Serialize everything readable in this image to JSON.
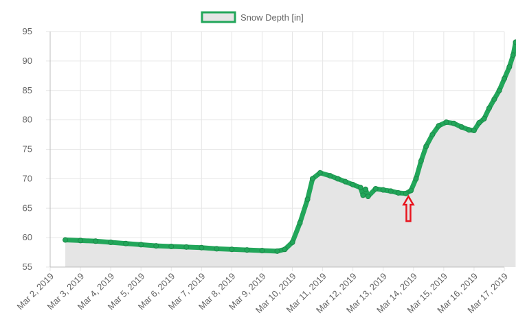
{
  "chart_data": {
    "type": "area",
    "legend": {
      "label": "Snow Depth [in]",
      "position": "top"
    },
    "colors": {
      "line": "#22a65a",
      "fill": "#e5e5e5",
      "grid": "#e6e6e6",
      "annotation": "#e8141e"
    },
    "ylim": [
      55,
      95
    ],
    "y_ticks": [
      "55",
      "60",
      "65",
      "70",
      "75",
      "80",
      "85",
      "90",
      "95"
    ],
    "xlim": [
      "2019-03-02",
      "2019-03-17"
    ],
    "x_ticks": [
      "Mar 2, 2019",
      "Mar 3, 2019",
      "Mar 4, 2019",
      "Mar 5, 2019",
      "Mar 6, 2019",
      "Mar 7, 2019",
      "Mar 8, 2019",
      "Mar 9, 2019",
      "Mar 10, 2019",
      "Mar 11, 2019",
      "Mar 12, 2019",
      "Mar 13, 2019",
      "Mar 14, 2019",
      "Mar 15, 2019",
      "Mar 16, 2019",
      "Mar 17, 2019"
    ],
    "grid": true,
    "annotation": {
      "type": "arrow-up",
      "x": "2019-03-13T20:00",
      "y": 67
    },
    "series": [
      {
        "name": "Snow Depth [in]",
        "points": [
          [
            "2019-03-02T12:00",
            59.6
          ],
          [
            "2019-03-03T00:00",
            59.5
          ],
          [
            "2019-03-03T12:00",
            59.4
          ],
          [
            "2019-03-04T00:00",
            59.2
          ],
          [
            "2019-03-04T12:00",
            59.0
          ],
          [
            "2019-03-05T00:00",
            58.8
          ],
          [
            "2019-03-05T12:00",
            58.6
          ],
          [
            "2019-03-06T00:00",
            58.5
          ],
          [
            "2019-03-06T12:00",
            58.4
          ],
          [
            "2019-03-07T00:00",
            58.3
          ],
          [
            "2019-03-07T12:00",
            58.1
          ],
          [
            "2019-03-08T00:00",
            58.0
          ],
          [
            "2019-03-08T12:00",
            57.9
          ],
          [
            "2019-03-09T00:00",
            57.8
          ],
          [
            "2019-03-09T12:00",
            57.7
          ],
          [
            "2019-03-09T18:00",
            58.0
          ],
          [
            "2019-03-10T00:00",
            59.2
          ],
          [
            "2019-03-10T06:00",
            62.5
          ],
          [
            "2019-03-10T12:00",
            66.5
          ],
          [
            "2019-03-10T16:00",
            70.0
          ],
          [
            "2019-03-10T22:00",
            71.0
          ],
          [
            "2019-03-11T06:00",
            70.5
          ],
          [
            "2019-03-11T12:00",
            70.0
          ],
          [
            "2019-03-11T18:00",
            69.5
          ],
          [
            "2019-03-12T00:00",
            69.0
          ],
          [
            "2019-03-12T06:00",
            68.5
          ],
          [
            "2019-03-12T08:00",
            67.2
          ],
          [
            "2019-03-12T10:00",
            68.2
          ],
          [
            "2019-03-12T12:00",
            67.0
          ],
          [
            "2019-03-12T18:00",
            68.3
          ],
          [
            "2019-03-13T00:00",
            68.1
          ],
          [
            "2019-03-13T06:00",
            67.9
          ],
          [
            "2019-03-13T12:00",
            67.6
          ],
          [
            "2019-03-13T18:00",
            67.5
          ],
          [
            "2019-03-13T22:00",
            68.0
          ],
          [
            "2019-03-14T02:00",
            70.0
          ],
          [
            "2019-03-14T06:00",
            73.0
          ],
          [
            "2019-03-14T10:00",
            75.5
          ],
          [
            "2019-03-14T15:00",
            77.5
          ],
          [
            "2019-03-14T20:00",
            79.0
          ],
          [
            "2019-03-15T02:00",
            79.6
          ],
          [
            "2019-03-15T08:00",
            79.4
          ],
          [
            "2019-03-15T14:00",
            78.8
          ],
          [
            "2019-03-15T20:00",
            78.3
          ],
          [
            "2019-03-16T00:00",
            78.2
          ],
          [
            "2019-03-16T04:00",
            79.5
          ],
          [
            "2019-03-16T08:00",
            80.2
          ],
          [
            "2019-03-16T12:00",
            82.0
          ],
          [
            "2019-03-16T16:00",
            83.5
          ],
          [
            "2019-03-16T20:00",
            85.0
          ],
          [
            "2019-03-17T00:00",
            87.0
          ],
          [
            "2019-03-17T04:00",
            89.0
          ],
          [
            "2019-03-17T07:00",
            91.0
          ],
          [
            "2019-03-17T09:00",
            93.2
          ]
        ]
      }
    ]
  }
}
